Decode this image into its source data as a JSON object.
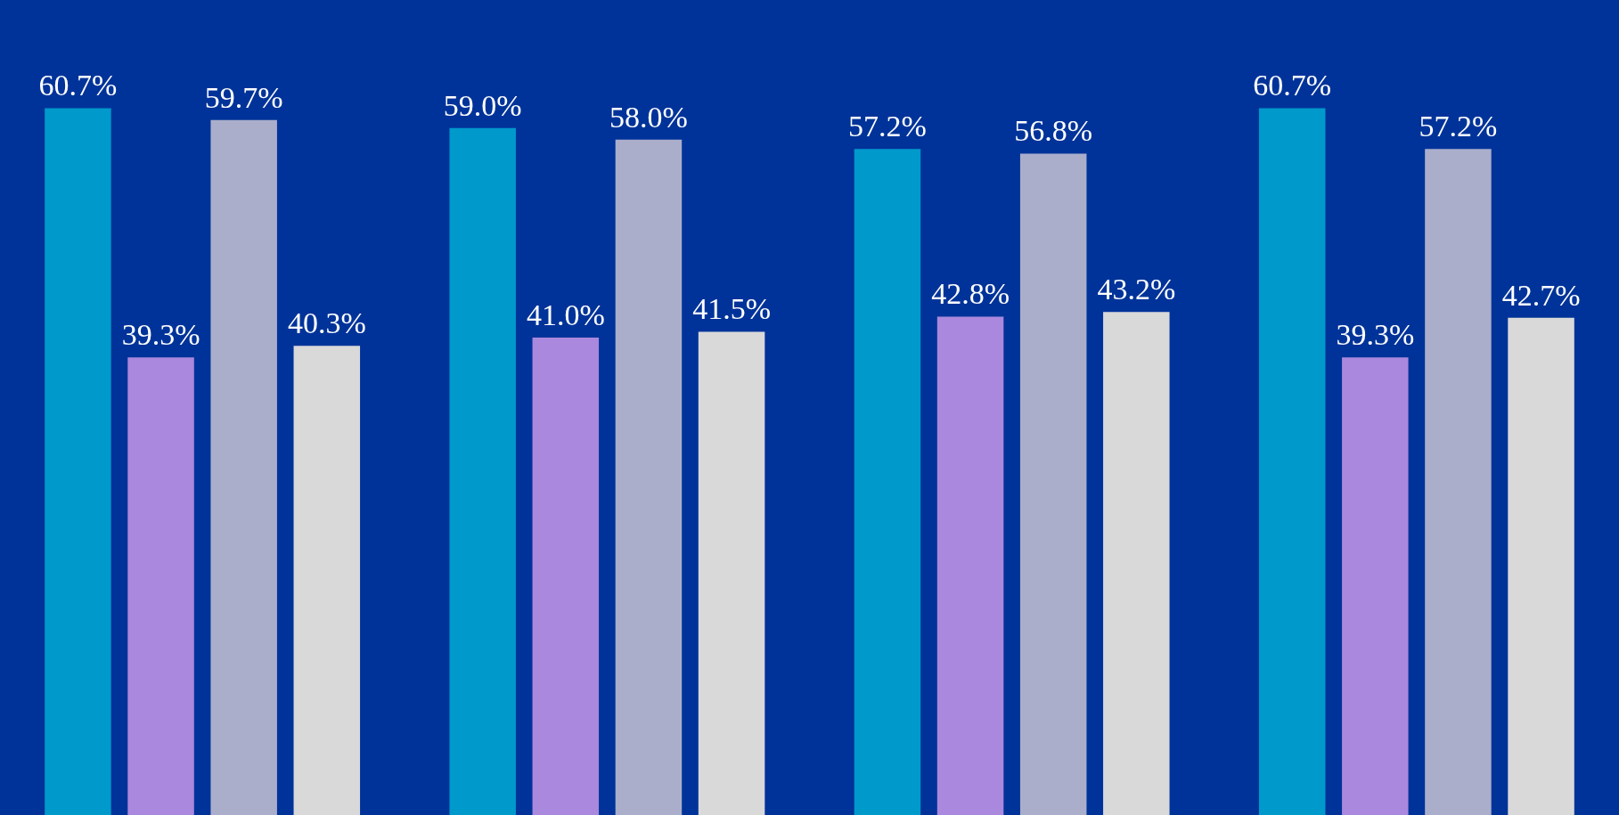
{
  "chart_data": {
    "type": "bar",
    "categories": [
      null,
      null,
      null,
      null
    ],
    "legend": false,
    "series": [
      {
        "color": "#0099cc",
        "values": [
          60.7,
          59.0,
          57.2,
          60.7
        ],
        "value_labels": [
          "60.7%",
          "59.0%",
          "57.2%",
          "60.7%"
        ]
      },
      {
        "color": "#aa88dd",
        "values": [
          39.3,
          41.0,
          42.8,
          39.3
        ],
        "value_labels": [
          "39.3%",
          "41.0%",
          "42.8%",
          "39.3%"
        ]
      },
      {
        "color": "#aaaecb",
        "values": [
          59.7,
          58.0,
          56.8,
          57.2
        ],
        "value_labels": [
          "59.7%",
          "58.0%",
          "56.8%",
          "57.2%"
        ]
      },
      {
        "color": "#d9d9d9",
        "values": [
          40.3,
          41.5,
          43.2,
          42.7
        ],
        "value_labels": [
          "40.3%",
          "41.5%",
          "43.2%",
          "42.7%"
        ]
      }
    ]
  }
}
